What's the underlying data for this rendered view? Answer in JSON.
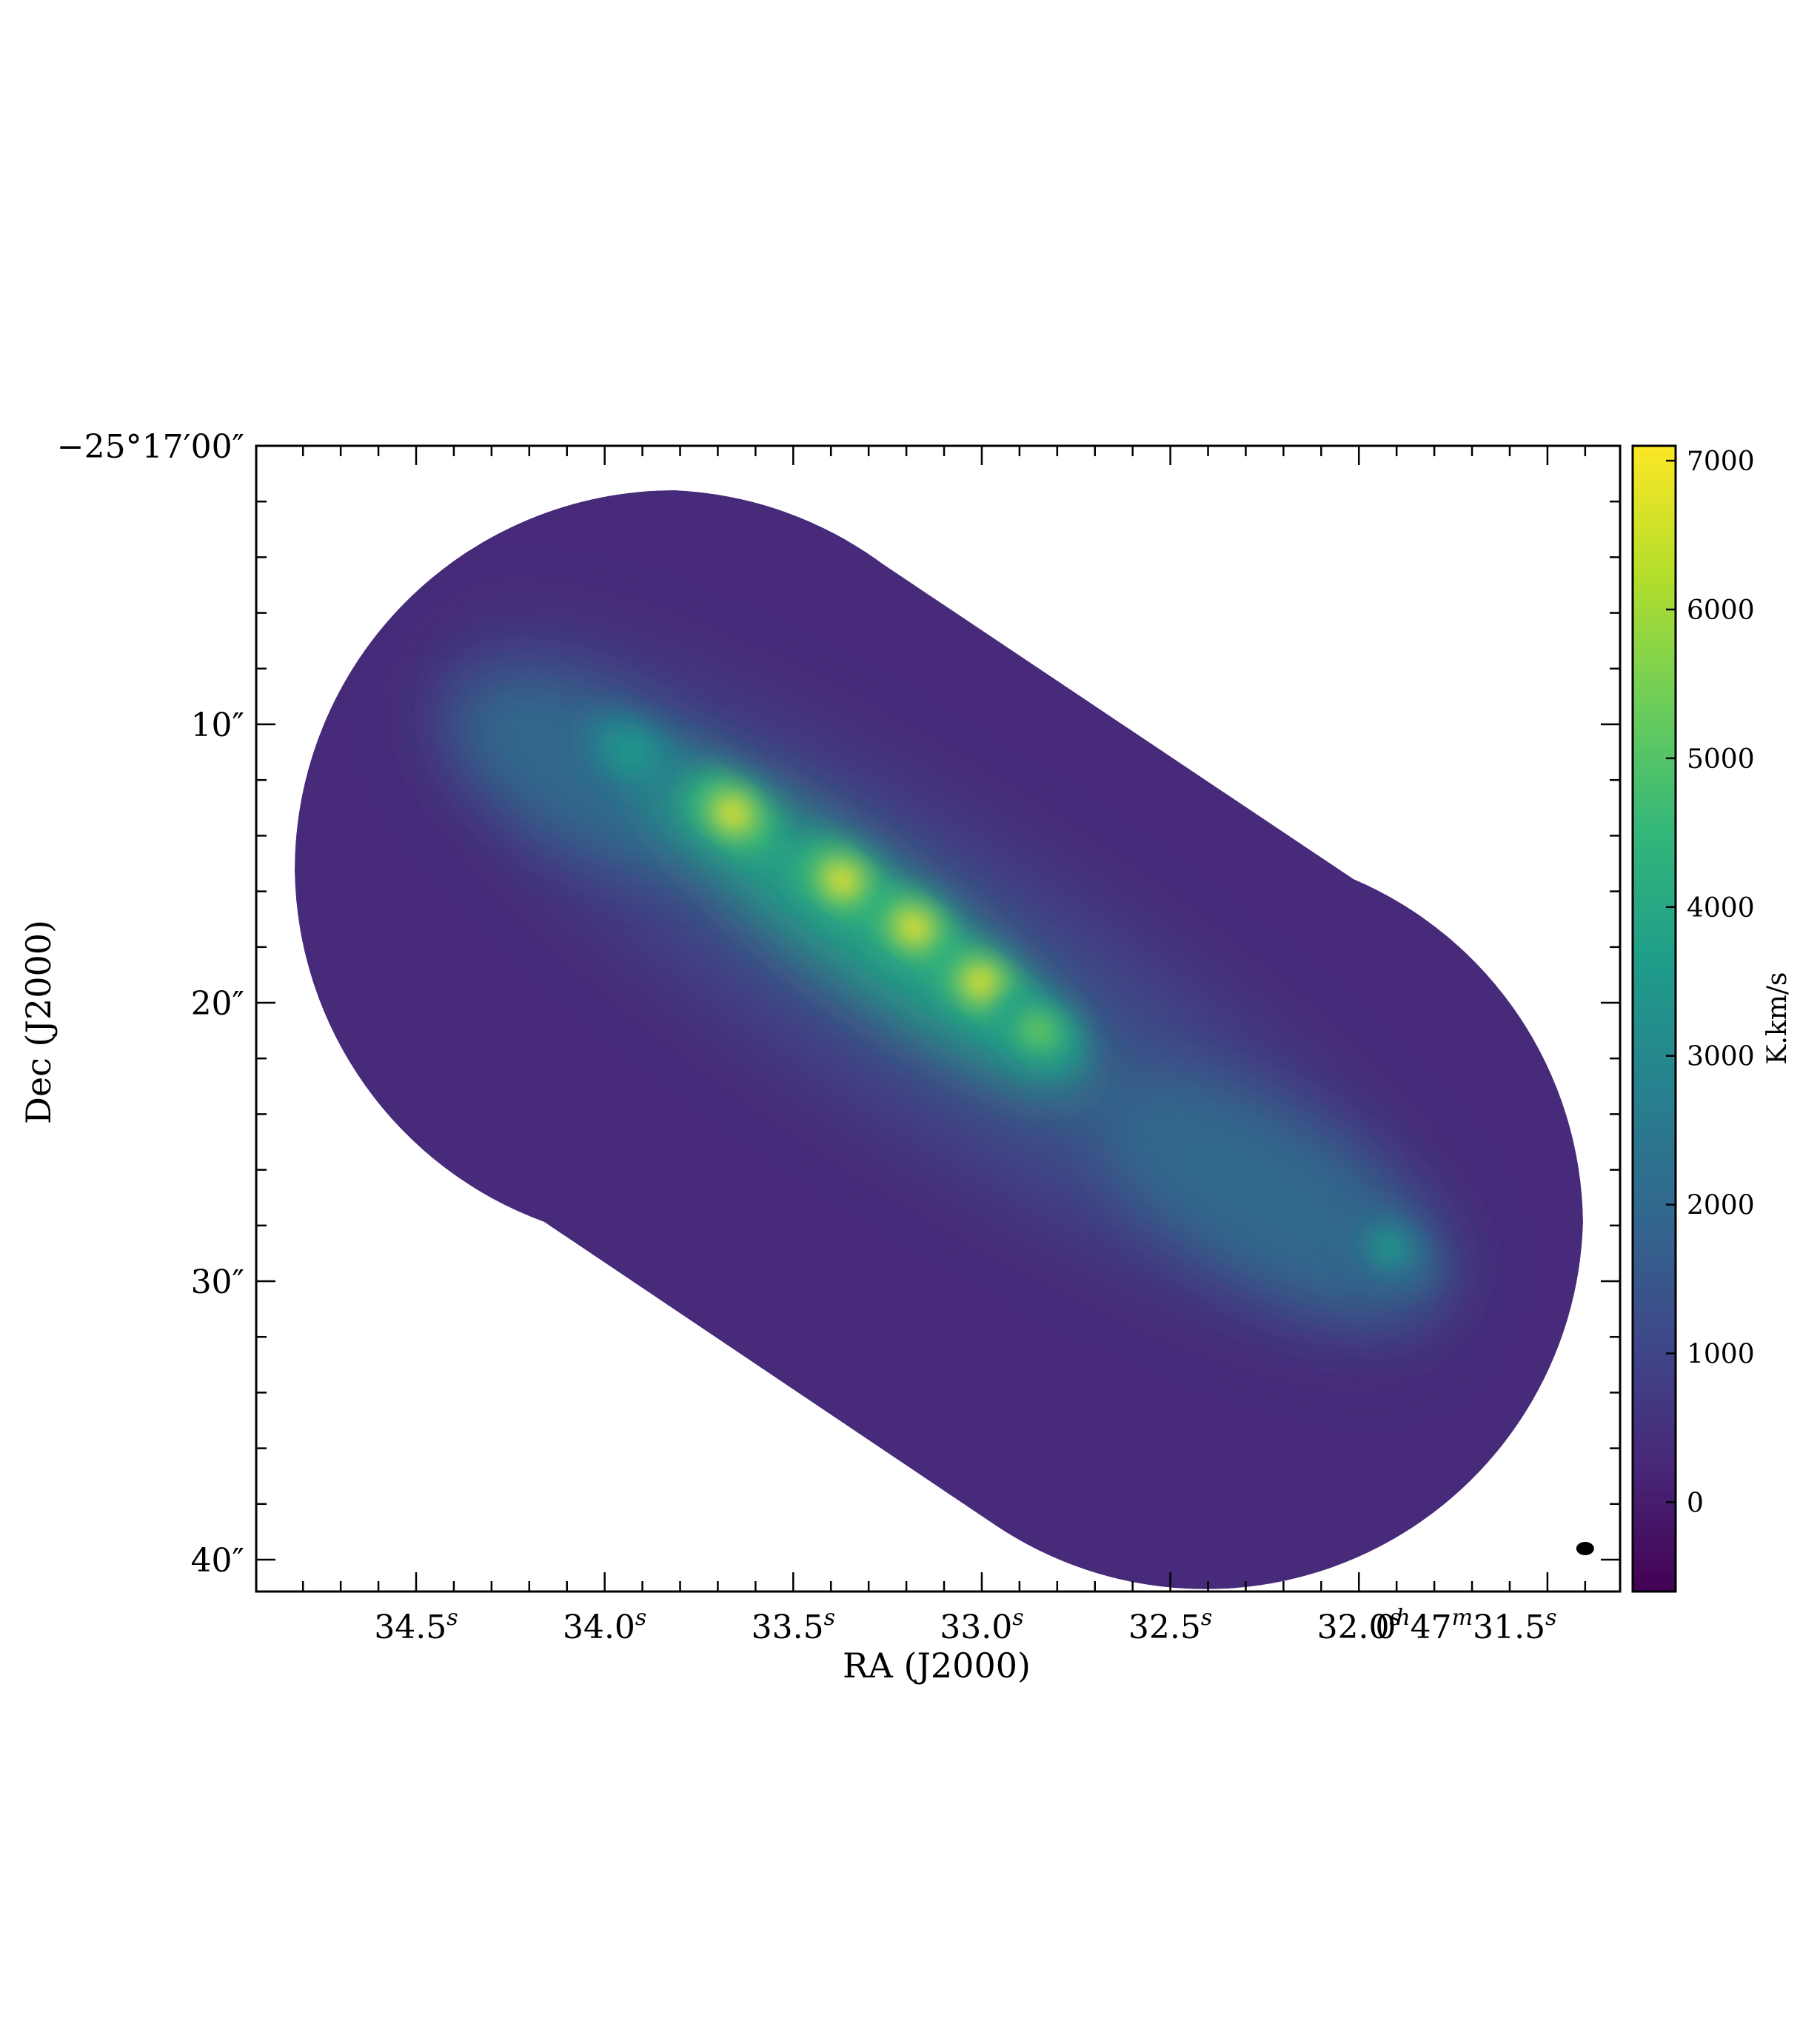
{
  "chart_data": {
    "type": "heatmap",
    "title": "",
    "xlabel": "RA (J2000)",
    "ylabel": "Dec (J2000)",
    "x_tick_labels": [
      {
        "main": "34.5",
        "sup": "s"
      },
      {
        "main": "34.0",
        "sup": "s"
      },
      {
        "main": "33.5",
        "sup": "s"
      },
      {
        "main": "33.0",
        "sup": "s"
      },
      {
        "main": "32.5",
        "sup": "s"
      },
      {
        "main": "32.0",
        "sup": "s"
      },
      {
        "parts": [
          "0",
          "h",
          "47",
          "m",
          "31.5",
          "s"
        ]
      }
    ],
    "y_tick_labels": [
      "−25°17′00″",
      "10″",
      "20″",
      "30″",
      "40″"
    ],
    "colorbar": {
      "label": "K.km/s",
      "ticks": [
        "0",
        "1000",
        "2000",
        "3000",
        "4000",
        "5000",
        "6000",
        "7000"
      ],
      "range": [
        -600,
        7100
      ],
      "colormap": "viridis",
      "colors": [
        "#440154",
        "#482878",
        "#3e4989",
        "#31688e",
        "#26828e",
        "#1f9e89",
        "#35b779",
        "#6ece58",
        "#b5de2b",
        "#fde725"
      ]
    },
    "background_level": 0,
    "emission_features": [
      {
        "ra_s": 33.66,
        "dec_arcsec": 13.2,
        "peak": 6800
      },
      {
        "ra_s": 33.37,
        "dec_arcsec": 15.6,
        "peak": 7000
      },
      {
        "ra_s": 33.18,
        "dec_arcsec": 17.3,
        "peak": 7100
      },
      {
        "ra_s": 33.0,
        "dec_arcsec": 19.3,
        "peak": 6800
      },
      {
        "ra_s": 32.85,
        "dec_arcsec": 21.0,
        "peak": 5200
      },
      {
        "ra_s": 33.93,
        "dec_arcsec": 11.0,
        "peak": 3800
      },
      {
        "ra_s": 31.92,
        "dec_arcsec": 28.8,
        "peak": 3600
      }
    ],
    "beam": {
      "ra_s": 31.4,
      "dec_arcsec": 39.6
    }
  }
}
